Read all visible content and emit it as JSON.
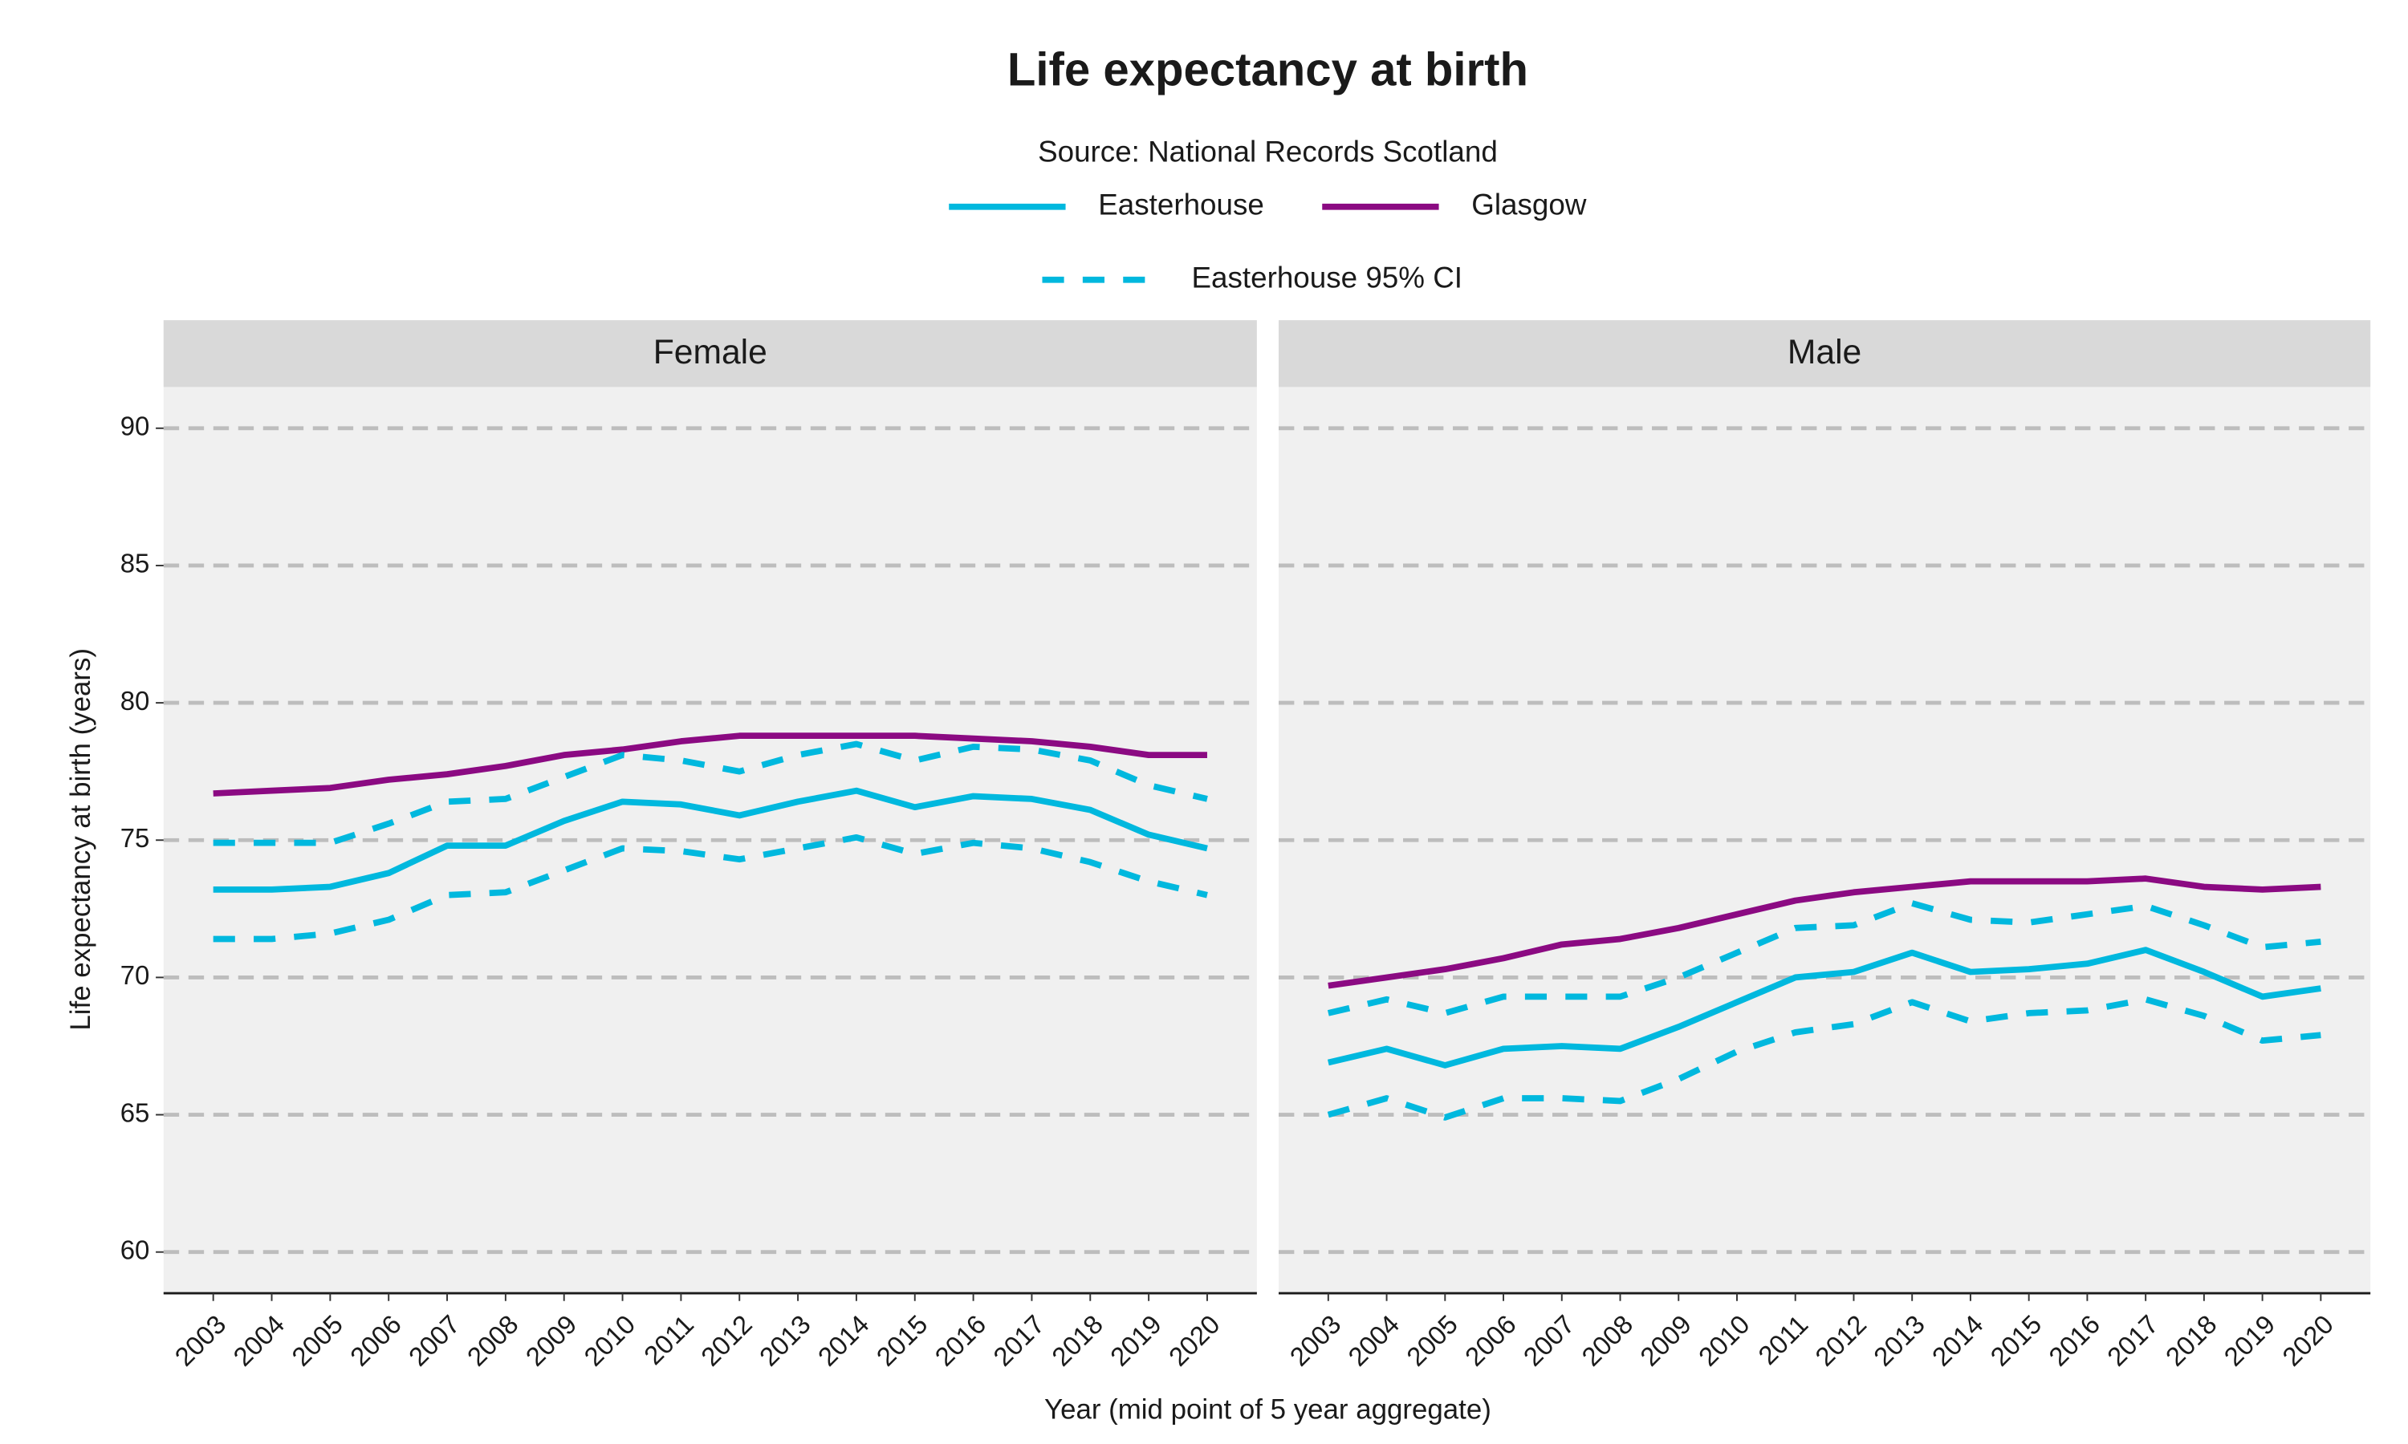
{
  "chart_data": {
    "type": "line",
    "title": "Life expectancy at birth",
    "subtitle": "Source: National Records Scotland",
    "x_label": "Year (mid point of 5 year aggregate)",
    "y_label": "Life expectancy at birth (years)",
    "categories": [
      "2003",
      "2004",
      "2005",
      "2006",
      "2007",
      "2008",
      "2009",
      "2010",
      "2011",
      "2012",
      "2013",
      "2014",
      "2015",
      "2016",
      "2017",
      "2018",
      "2019",
      "2020"
    ],
    "ylim": [
      58.5,
      91.5
    ],
    "yticks": [
      60,
      65,
      70,
      75,
      80,
      85,
      90
    ],
    "grid": true,
    "series": [
      {
        "name": "Easterhouse",
        "color": "#00b8de",
        "linestyle": "solid"
      },
      {
        "name": "Glasgow",
        "color": "#8b0a82",
        "linestyle": "solid"
      },
      {
        "name": "Easterhouse 95% CI",
        "color": "#00b8de",
        "linestyle": "dashed"
      }
    ],
    "panels": [
      {
        "title": "Female",
        "data": [
          {
            "values": [
              73.2,
              73.2,
              73.3,
              73.8,
              74.8,
              74.8,
              75.7,
              76.4,
              76.3,
              75.9,
              76.4,
              76.8,
              76.2,
              76.6,
              76.5,
              76.1,
              75.2,
              74.7
            ]
          },
          {
            "values": [
              76.7,
              76.8,
              76.9,
              77.2,
              77.4,
              77.7,
              78.1,
              78.3,
              78.6,
              78.8,
              78.8,
              78.8,
              78.8,
              78.7,
              78.6,
              78.4,
              78.1,
              78.1
            ]
          },
          {
            "upper": [
              74.9,
              74.9,
              74.9,
              75.6,
              76.4,
              76.5,
              77.3,
              78.1,
              77.9,
              77.5,
              78.1,
              78.5,
              77.9,
              78.4,
              78.3,
              77.9,
              77.0,
              76.5
            ],
            "lower": [
              71.4,
              71.4,
              71.6,
              72.1,
              73.0,
              73.1,
              73.9,
              74.7,
              74.6,
              74.3,
              74.7,
              75.1,
              74.5,
              74.9,
              74.7,
              74.2,
              73.5,
              73.0
            ]
          }
        ]
      },
      {
        "title": "Male",
        "data": [
          {
            "values": [
              66.9,
              67.4,
              66.8,
              67.4,
              67.5,
              67.4,
              68.2,
              69.1,
              70.0,
              70.2,
              70.9,
              70.2,
              70.3,
              70.5,
              71.0,
              70.2,
              69.3,
              69.6
            ]
          },
          {
            "values": [
              69.7,
              70.0,
              70.3,
              70.7,
              71.2,
              71.4,
              71.8,
              72.3,
              72.8,
              73.1,
              73.3,
              73.5,
              73.5,
              73.5,
              73.6,
              73.3,
              73.2,
              73.3
            ]
          },
          {
            "upper": [
              68.7,
              69.2,
              68.7,
              69.3,
              69.3,
              69.3,
              70.0,
              70.9,
              71.8,
              71.9,
              72.7,
              72.1,
              72.0,
              72.3,
              72.6,
              71.9,
              71.1,
              71.3
            ],
            "lower": [
              65.0,
              65.6,
              64.9,
              65.6,
              65.6,
              65.5,
              66.3,
              67.3,
              68.0,
              68.3,
              69.1,
              68.4,
              68.7,
              68.8,
              69.2,
              68.6,
              67.7,
              67.9
            ]
          }
        ]
      }
    ]
  }
}
